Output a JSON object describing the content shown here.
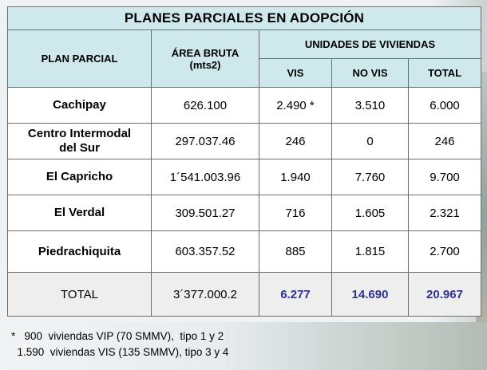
{
  "title": "PLANES PARCIALES EN ADOPCIÓN",
  "headers": {
    "plan": "PLAN PARCIAL",
    "area": "ÁREA BRUTA",
    "area_unit": "(mts2)",
    "units": "UNIDADES DE VIVIENDAS",
    "vis": "VIS",
    "no_vis": "NO  VIS",
    "total": "TOTAL"
  },
  "rows": [
    {
      "name_l1": "Cachipay",
      "name_l2": "",
      "area": "626.100",
      "vis": "2.490 *",
      "no_vis": "3.510",
      "total": "6.000"
    },
    {
      "name_l1": "Centro Intermodal",
      "name_l2": "del Sur",
      "area": "297.037.46",
      "vis": "246",
      "no_vis": "0",
      "total": "246"
    },
    {
      "name_l1": "El Capricho",
      "name_l2": "",
      "area": "1´541.003.96",
      "vis": "1.940",
      "no_vis": "7.760",
      "total": "9.700"
    },
    {
      "name_l1": "El Verdal",
      "name_l2": "",
      "area": "309.501.27",
      "vis": "716",
      "no_vis": "1.605",
      "total": "2.321"
    },
    {
      "name_l1": "Piedrachiquita",
      "name_l2": "",
      "area": "603.357.52",
      "vis": "885",
      "no_vis": "1.815",
      "total": "2.700"
    }
  ],
  "total_row": {
    "label": "TOTAL",
    "area": "3´377.000.2",
    "vis": "6.277",
    "no_vis": "14.690",
    "total": "20.967"
  },
  "notes": [
    "*   900  viviendas VIP (70 SMMV),  tipo 1 y 2",
    "  1.590  viviendas VIS (135 SMMV), tipo 3 y 4"
  ],
  "colors": {
    "header_bg": "#cfe8ec",
    "total_highlight": "#2e3192"
  }
}
